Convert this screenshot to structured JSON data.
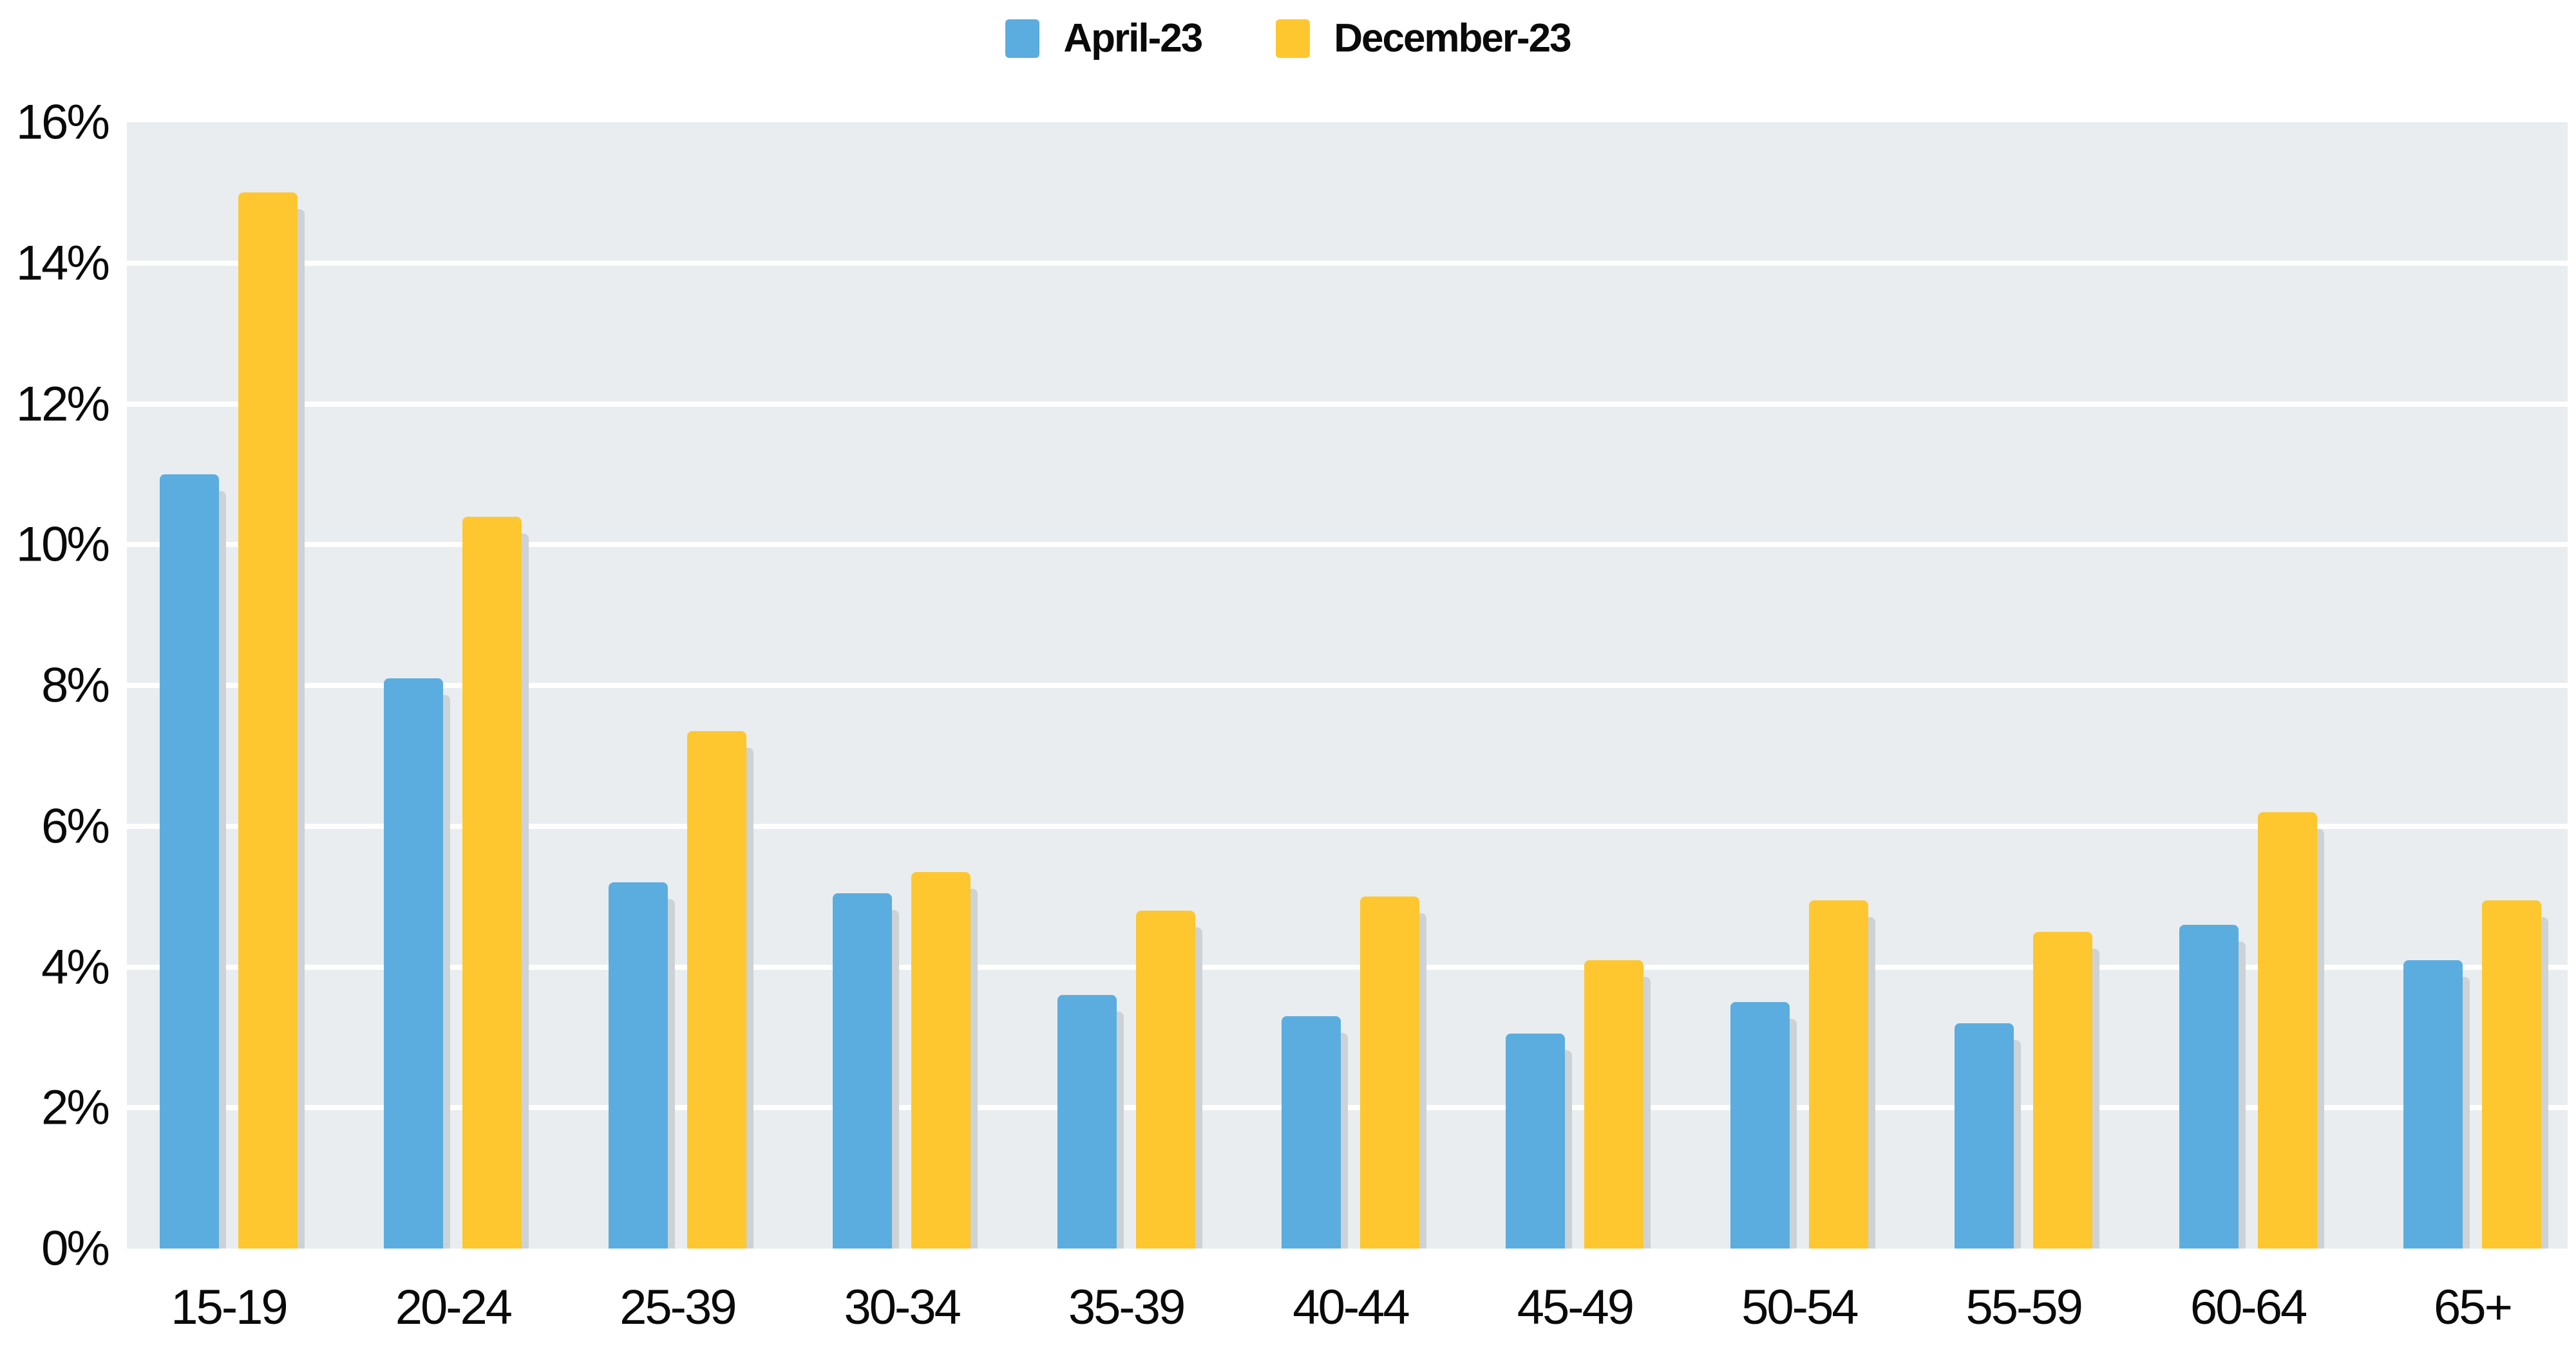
{
  "legend": {
    "items": [
      {
        "label": "April-23",
        "color": "#5bade0"
      },
      {
        "label": "December-23",
        "color": "#fec72f"
      }
    ]
  },
  "chart_data": {
    "type": "bar",
    "title": "",
    "xlabel": "",
    "ylabel": "",
    "categories": [
      "15-19",
      "20-24",
      "25-39",
      "30-34",
      "35-39",
      "40-44",
      "45-49",
      "50-54",
      "55-59",
      "60-64",
      "65+"
    ],
    "series": [
      {
        "name": "April-23",
        "color": "#5bade0",
        "values": [
          11.0,
          8.1,
          5.2,
          5.05,
          3.6,
          3.3,
          3.05,
          3.5,
          3.2,
          4.6,
          4.1
        ]
      },
      {
        "name": "December-23",
        "color": "#fec72f",
        "values": [
          15.0,
          10.4,
          7.35,
          5.35,
          4.8,
          5.0,
          4.1,
          4.95,
          4.5,
          6.2,
          4.95
        ]
      }
    ],
    "ylim": [
      0,
      16
    ],
    "yticks_top_to_bottom": [
      "16%",
      "14%",
      "12%",
      "10%",
      "8%",
      "6%",
      "4%",
      "2%",
      "0%"
    ],
    "grid": true,
    "legend_position": "top-center",
    "plot_bg": "#e9edf0",
    "gridline_color": "#ffffff",
    "shadow_color": "#ccd2d6",
    "text_color": "#0a0a0a"
  }
}
